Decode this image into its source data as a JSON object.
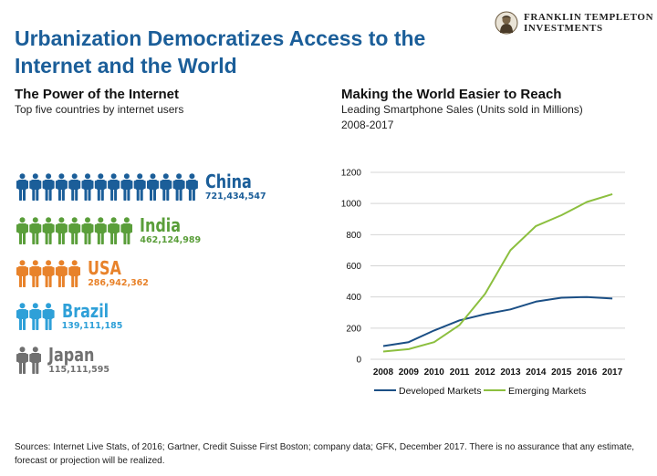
{
  "header": {
    "title_line1": "Urbanization Democratizes Access to the",
    "title_line2": "Internet and the World",
    "logo_line1": "FRANKLIN TEMPLETON",
    "logo_line2": "INVESTMENTS",
    "logo_icon": "portrait-emblem-icon"
  },
  "left_panel": {
    "title": "The Power of the Internet",
    "subtitle": "Top five countries by internet users",
    "icon": "person-icon",
    "countries": [
      {
        "name": "China",
        "users": "721,434,547",
        "icon_count": 14,
        "color": "#1b5e99"
      },
      {
        "name": "India",
        "users": "462,124,989",
        "icon_count": 9,
        "color": "#5a9e3a"
      },
      {
        "name": "USA",
        "users": "286,942,362",
        "icon_count": 5,
        "color": "#e8822a"
      },
      {
        "name": "Brazil",
        "users": "139,111,185",
        "icon_count": 3,
        "color": "#2ea0d8"
      },
      {
        "name": "Japan",
        "users": "115,111,595",
        "icon_count": 2,
        "color": "#707070"
      }
    ]
  },
  "right_panel": {
    "title": "Making the World Easier to Reach",
    "subtitle_line1": "Leading Smartphone Sales (Units sold in Millions)",
    "subtitle_line2": "2008-2017"
  },
  "chart_data": {
    "type": "line",
    "x": [
      2008,
      2009,
      2010,
      2011,
      2012,
      2013,
      2014,
      2015,
      2016,
      2017
    ],
    "series": [
      {
        "name": "Developed Markets",
        "color": "#1b4f85",
        "values": [
          85,
          110,
          185,
          250,
          290,
          320,
          370,
          395,
          400,
          390
        ]
      },
      {
        "name": "Emerging Markets",
        "color": "#8cbf3f",
        "values": [
          50,
          65,
          110,
          220,
          420,
          700,
          855,
          925,
          1010,
          1060
        ]
      }
    ],
    "ylim": [
      0,
      1200
    ],
    "yticks": [
      0,
      200,
      400,
      600,
      800,
      1000,
      1200
    ],
    "grid": true,
    "legend": "bottom"
  },
  "footnote": "Sources: Internet Live Stats, of 2016; Gartner, Credit Suisse First Boston; company data; GFK, December 2017. There is no assurance that any estimate, forecast or projection will be realized."
}
